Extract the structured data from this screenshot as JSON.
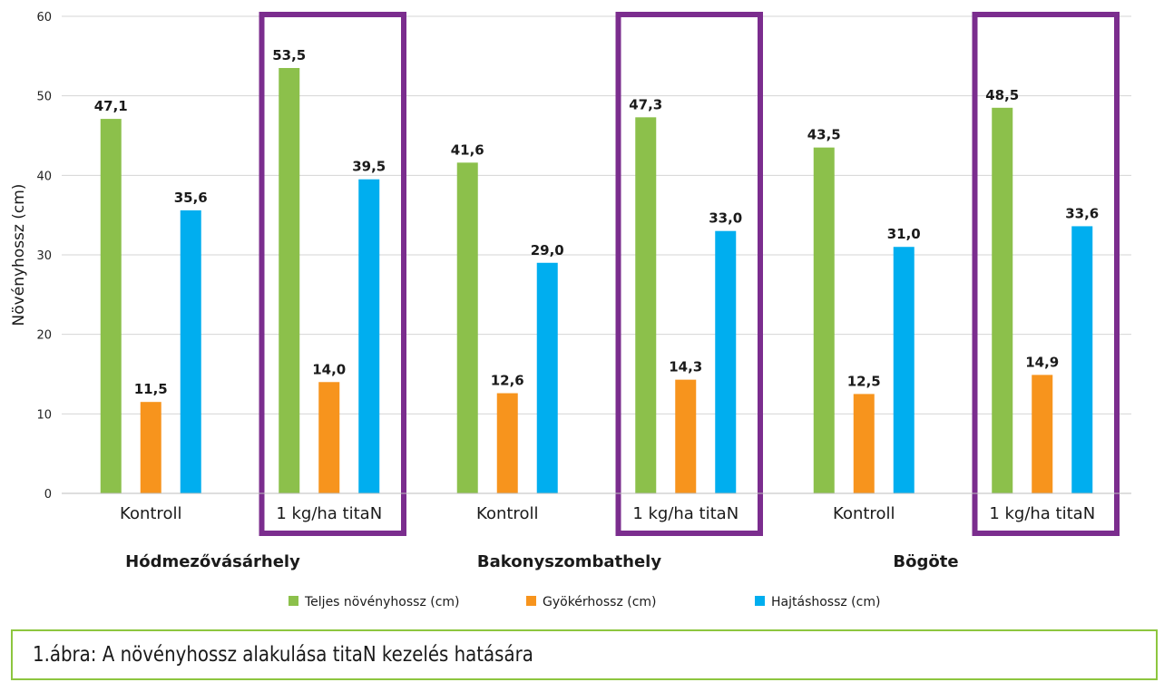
{
  "chart_data": {
    "type": "bar",
    "ylabel": "Növényhossz (cm)",
    "ylim": [
      0,
      60
    ],
    "yticks": [
      0,
      10,
      20,
      30,
      40,
      50,
      60
    ],
    "grid": true,
    "legend_position": "bottom",
    "groups": [
      {
        "location": "Hódmezővásárhely",
        "treatments": [
          {
            "label": "Kontroll",
            "highlighted": false,
            "values": [
              47.1,
              11.5,
              35.6
            ],
            "labels": [
              "47,1",
              "11,5",
              "35,6"
            ]
          },
          {
            "label": "1 kg/ha titaN",
            "highlighted": true,
            "values": [
              53.5,
              14.0,
              39.5
            ],
            "labels": [
              "53,5",
              "14,0",
              "39,5"
            ]
          }
        ]
      },
      {
        "location": "Bakonyszombathely",
        "treatments": [
          {
            "label": "Kontroll",
            "highlighted": false,
            "values": [
              41.6,
              12.6,
              29.0
            ],
            "labels": [
              "41,6",
              "12,6",
              "29,0"
            ]
          },
          {
            "label": "1 kg/ha titaN",
            "highlighted": true,
            "values": [
              47.3,
              14.3,
              33.0
            ],
            "labels": [
              "47,3",
              "14,3",
              "33,0"
            ]
          }
        ]
      },
      {
        "location": "Bögöte",
        "treatments": [
          {
            "label": "Kontroll",
            "highlighted": false,
            "values": [
              43.5,
              12.5,
              31.0
            ],
            "labels": [
              "43,5",
              "12,5",
              "31,0"
            ]
          },
          {
            "label": "1 kg/ha titaN",
            "highlighted": true,
            "values": [
              48.5,
              14.9,
              33.6
            ],
            "labels": [
              "48,5",
              "14,9",
              "33,6"
            ]
          }
        ]
      }
    ],
    "series": [
      {
        "name": "Teljes növényhossz (cm)",
        "color": "#8cc04b"
      },
      {
        "name": "Gyökérhossz (cm)",
        "color": "#f7941d"
      },
      {
        "name": "Hajtáshossz (cm)",
        "color": "#00aeef"
      }
    ],
    "highlight_color": "#7b2d8e"
  },
  "caption": "1.ábra: A növényhossz alakulása titaN kezelés hatására"
}
